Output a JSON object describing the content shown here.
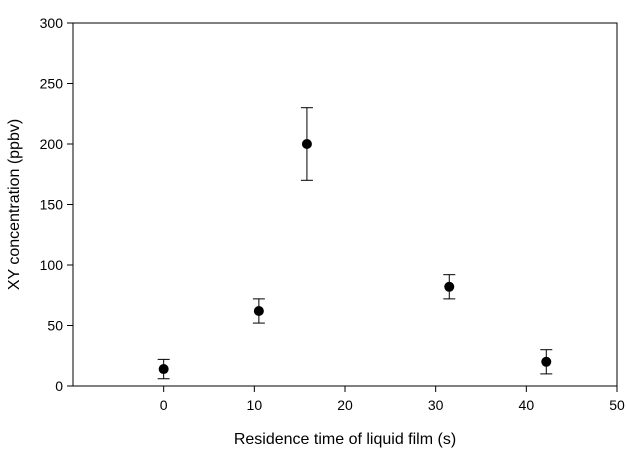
{
  "chart_data": {
    "type": "scatter",
    "title": "",
    "xlabel": "Residence time of liquid film (s)",
    "ylabel": "XY concentration (ppbv)",
    "xlim": [
      -10,
      50
    ],
    "ylim": [
      0,
      300
    ],
    "xticks": [
      0,
      10,
      20,
      30,
      40,
      50
    ],
    "yticks": [
      0,
      50,
      100,
      150,
      200,
      250,
      300
    ],
    "grid": false,
    "legend": "none",
    "marker_color": "#000000",
    "series": [
      {
        "points": [
          {
            "x": 0,
            "y": 14,
            "err_low": 6,
            "err_high": 22
          },
          {
            "x": 10.5,
            "y": 62,
            "err_low": 52,
            "err_high": 72
          },
          {
            "x": 15.8,
            "y": 200,
            "err_low": 170,
            "err_high": 230
          },
          {
            "x": 31.5,
            "y": 82,
            "err_low": 72,
            "err_high": 92
          },
          {
            "x": 42.2,
            "y": 20,
            "err_low": 10,
            "err_high": 30
          }
        ]
      }
    ]
  }
}
